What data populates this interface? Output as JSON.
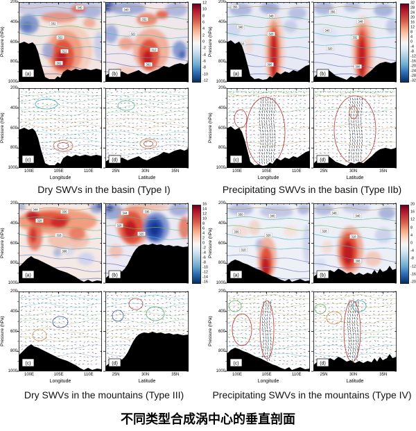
{
  "figure": {
    "title_zh": "不同类型合成涡中心的垂直剖面",
    "shared": {
      "ylabel": "Pressure (hPa)",
      "yticks": [
        "200",
        "400",
        "600",
        "800",
        "1000"
      ],
      "xlabel_lon": "Longitude",
      "xlabel_lat": "Latitude",
      "xticks_lon": [
        "100E",
        "105E",
        "110E"
      ],
      "xticks_lat": [
        "25N",
        "30N",
        "35N"
      ]
    },
    "quadrants": [
      {
        "caption": "Dry SWVs in the basin (Type I)",
        "panel_labels": [
          "(a)",
          "(b)",
          "(c)",
          "(d)"
        ],
        "colorbar_ticks": [
          "12",
          "10",
          "8",
          "6",
          "4",
          "2",
          "0",
          "-2",
          "-4",
          "-6",
          "-8",
          "-10",
          "-12"
        ],
        "isentropes_a": [
          "340",
          "332",
          "322",
          "312",
          "302"
        ],
        "isentropes_b": [
          "340",
          "332",
          "322",
          "312",
          "302"
        ]
      },
      {
        "caption": "Precipitating SWVs in the basin (Type IIb)",
        "panel_labels": [
          "(a)",
          "(b)",
          "(c)",
          "(d)"
        ],
        "colorbar_ticks": [
          "32",
          "28",
          "24",
          "20",
          "16",
          "12",
          "8",
          "4",
          "0",
          "-4",
          "-8",
          "-12",
          "-16",
          "-20",
          "-24",
          "-28",
          "-32"
        ],
        "isentropes_a": [
          "356",
          "348",
          "340",
          "328",
          "316",
          "308"
        ],
        "isentropes_b": [
          "356",
          "348",
          "340",
          "332",
          "320",
          "308"
        ]
      },
      {
        "caption": "Dry SWVs in the mountains (Type III)",
        "panel_labels": [
          "(a)",
          "(b)",
          "(c)",
          "(d)"
        ],
        "colorbar_ticks": [
          "16",
          "14",
          "12",
          "10",
          "8",
          "6",
          "4",
          "2",
          "0",
          "-2",
          "-4",
          "-6",
          "-8",
          "-10",
          "-12",
          "-14",
          "-16"
        ],
        "isentropes_a": [
          "344",
          "336",
          "328",
          "318",
          "308"
        ],
        "isentropes_b": [
          "344",
          "336",
          "328",
          "320",
          "310"
        ]
      },
      {
        "caption": "Precipitating SWVs in the mountains (Type IV)",
        "panel_labels": [
          "(a)",
          "(b)",
          "(c)",
          "(d)"
        ],
        "colorbar_ticks": [
          "20",
          "16",
          "12",
          "8",
          "4",
          "0",
          "-4",
          "-8",
          "-12",
          "-16",
          "-20"
        ],
        "isentropes_a": [
          "350",
          "340",
          "330",
          "320",
          "310"
        ],
        "isentropes_b": [
          "348",
          "340",
          "328",
          "318",
          "308"
        ]
      }
    ]
  },
  "chart_data": [
    {
      "type": "heatmap",
      "title": "Dry SWVs in the basin (Type I)",
      "layout": "2x2 panels: (a) shaded longitude section, (b) shaded latitude section, (c) vector/contour longitude section, (d) vector/contour latitude section",
      "y_axis": {
        "label": "Pressure (hPa)",
        "ticks": [
          200,
          400,
          600,
          800,
          1000
        ],
        "range": [
          200,
          1000
        ],
        "inverted": true
      },
      "x_axes": [
        {
          "panels": "(a),(c)",
          "label": "Longitude",
          "ticks": [
            "100E",
            "105E",
            "110E"
          ]
        },
        {
          "panels": "(b),(d)",
          "label": "Latitude",
          "ticks": [
            "25N",
            "30N",
            "35N"
          ]
        }
      ],
      "colorbar": {
        "min": -12,
        "max": 12,
        "step": 2,
        "ticks": [
          12,
          10,
          8,
          6,
          4,
          2,
          0,
          -2,
          -4,
          -6,
          -8,
          -10,
          -12
        ],
        "palette": "red-white-blue diverging"
      },
      "contour_labels_a": [
        340,
        332,
        322,
        312,
        302
      ],
      "contour_labels_b": [
        340,
        332,
        322,
        312,
        302
      ],
      "features": "Positive (red) core near 105-107E / 30N at 600-850 hPa over the basin; negative (blue) cell near 100E at 400 hPa; black terrain silhouette with high plateau on the west; panels (c)/(d) show dense wind vectors with closed orange/red circulation contours near 800 hPa."
    },
    {
      "type": "heatmap",
      "title": "Precipitating SWVs in the basin (Type IIb)",
      "layout": "2x2 panels: (a) shaded longitude section, (b) shaded latitude section, (c) vector/contour longitude section, (d) vector/contour latitude section",
      "y_axis": {
        "label": "Pressure (hPa)",
        "ticks": [
          200,
          400,
          600,
          800,
          1000
        ],
        "range": [
          200,
          1000
        ],
        "inverted": true
      },
      "x_axes": [
        {
          "panels": "(a),(c)",
          "label": "Longitude",
          "ticks": [
            "100E",
            "105E",
            "110E"
          ]
        },
        {
          "panels": "(b),(d)",
          "label": "Latitude",
          "ticks": [
            "25N",
            "30N",
            "35N"
          ]
        }
      ],
      "colorbar": {
        "min": -32,
        "max": 32,
        "step": 4,
        "ticks": [
          32,
          28,
          24,
          20,
          16,
          12,
          8,
          4,
          0,
          -4,
          -8,
          -12,
          -16,
          -20,
          -24,
          -28,
          -32
        ],
        "palette": "red-white-blue diverging"
      },
      "contour_labels_a": [
        356,
        348,
        340,
        328,
        316,
        308
      ],
      "contour_labels_b": [
        356,
        348,
        340,
        332,
        320,
        308
      ],
      "features": "Deep narrow positive (red) column near 105E / 30N extending from ~400 hPa to the surface; pale blue/lavender background; panels (c)/(d) show strong upward motion column enclosed by large red contour loops."
    },
    {
      "type": "heatmap",
      "title": "Dry SWVs in the mountains (Type III)",
      "layout": "2x2 panels: (a) shaded longitude section, (b) shaded latitude section, (c) vector/contour longitude section, (d) vector/contour latitude section",
      "y_axis": {
        "label": "Pressure (hPa)",
        "ticks": [
          200,
          400,
          600,
          800,
          1000
        ],
        "range": [
          200,
          1000
        ],
        "inverted": true
      },
      "x_axes": [
        {
          "panels": "(a),(c)",
          "label": "Longitude",
          "ticks": [
            "100E",
            "105E",
            "110E"
          ]
        },
        {
          "panels": "(b),(d)",
          "label": "Latitude",
          "ticks": [
            "25N",
            "30N",
            "35N"
          ]
        }
      ],
      "colorbar": {
        "min": -16,
        "max": 16,
        "step": 2,
        "ticks": [
          16,
          14,
          12,
          10,
          8,
          6,
          4,
          2,
          0,
          -2,
          -4,
          -6,
          -8,
          -10,
          -12,
          -14,
          -16
        ],
        "palette": "red-white-blue diverging"
      },
      "contour_labels_a": [
        344,
        336,
        328,
        318,
        308
      ],
      "contour_labels_b": [
        344,
        336,
        328,
        320,
        310
      ],
      "features": "Broad positive (red) band at 250-450 hPa in (a); in (b) a strong red core near 28N at 300-500 hPa adjacent to a deep blue negative core near 30N; high mountainous terrain reaching ~600 hPa; (c)/(d) show colorful vector fields with closed blue/red circulation contours."
    },
    {
      "type": "heatmap",
      "title": "Precipitating SWVs in the mountains (Type IV)",
      "layout": "2x2 panels: (a) shaded longitude section, (b) shaded latitude section, (c) vector/contour longitude section, (d) vector/contour latitude section",
      "y_axis": {
        "label": "Pressure (hPa)",
        "ticks": [
          200,
          400,
          600,
          800,
          1000
        ],
        "range": [
          200,
          1000
        ],
        "inverted": true
      },
      "x_axes": [
        {
          "panels": "(a),(c)",
          "label": "Longitude",
          "ticks": [
            "100E",
            "105E",
            "110E"
          ]
        },
        {
          "panels": "(b),(d)",
          "label": "Latitude",
          "ticks": [
            "25N",
            "30N",
            "35N"
          ]
        }
      ],
      "colorbar": {
        "min": -20,
        "max": 20,
        "step": 4,
        "ticks": [
          20,
          16,
          12,
          8,
          4,
          0,
          -4,
          -8,
          -12,
          -16,
          -20
        ],
        "palette": "red-white-blue diverging"
      },
      "contour_labels_a": [
        350,
        340,
        330,
        320,
        310
      ],
      "contour_labels_b": [
        348,
        340,
        328,
        318,
        308
      ],
      "features": "Positive (red) teardrop core near 105E / 28-30N between 500 and 900 hPa; lavender negative band aloft at 200-300 hPa; mountainous terrain sloping down eastward; (c)/(d) show a central updraft column flanked by elongated red contour loops."
    }
  ]
}
